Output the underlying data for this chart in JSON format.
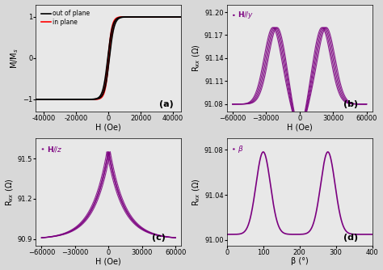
{
  "fig_width": 4.74,
  "fig_height": 3.34,
  "dpi": 100,
  "bg_color": "#d8d8d8",
  "plot_bg": "#e8e8e8",
  "purple_color": "#7B0080",
  "subplot_labels": [
    "(a)",
    "(b)",
    "(c)",
    "(d)"
  ],
  "panel_a": {
    "legend": [
      "out of plane",
      "in plane"
    ],
    "legend_colors": [
      "black",
      "red"
    ],
    "xlabel": "H (Oe)",
    "ylabel": "M/M$_s$",
    "xlim": [
      -45000,
      45000
    ],
    "ylim": [
      -1.3,
      1.3
    ],
    "xticks": [
      -40000,
      -20000,
      0,
      20000,
      40000
    ],
    "yticks": [
      -1,
      0,
      1
    ]
  },
  "panel_b": {
    "legend": [
      "H//y"
    ],
    "xlabel": "H (Oe)",
    "ylabel": "R$_{xx}$ (Ω)",
    "xlim": [
      -65000,
      65000
    ],
    "ylim": [
      91.07,
      91.21
    ],
    "xticks": [
      -60000,
      -30000,
      0,
      30000,
      60000
    ],
    "yticks": [
      91.08,
      91.11,
      91.14,
      91.17,
      91.2
    ]
  },
  "panel_c": {
    "legend": [
      "H//z"
    ],
    "xlabel": "H (Oe)",
    "ylabel": "R$_{xx}$ (Ω)",
    "xlim": [
      -65000,
      65000
    ],
    "ylim": [
      90.85,
      91.65
    ],
    "xticks": [
      -60000,
      -30000,
      0,
      30000,
      60000
    ],
    "yticks": [
      90.9,
      91.2,
      91.5
    ]
  },
  "panel_d": {
    "legend": [
      "β"
    ],
    "xlabel": "β (°)",
    "ylabel": "R$_{xx}$ (Ω)",
    "xlim": [
      0,
      400
    ],
    "ylim": [
      90.995,
      91.09
    ],
    "xticks": [
      0,
      100,
      200,
      300,
      400
    ],
    "yticks": [
      91.0,
      91.04,
      91.08
    ]
  }
}
